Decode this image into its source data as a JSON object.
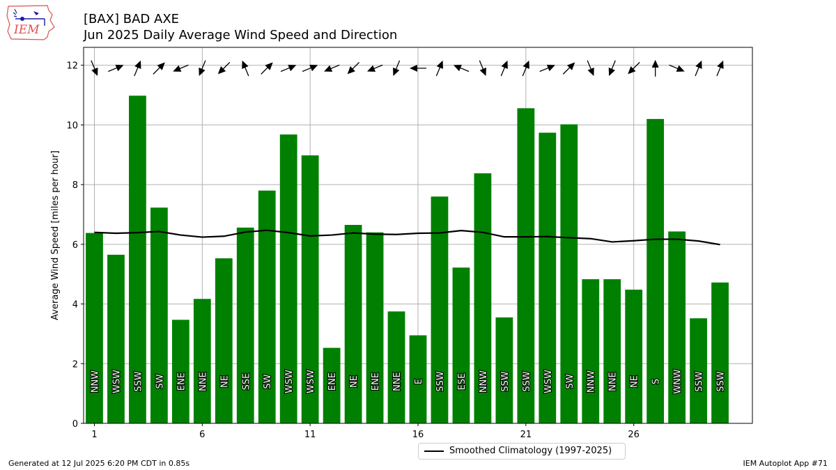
{
  "header": {
    "title_line1": "[BAX] BAD AXE",
    "title_line2": "Jun 2025 Daily Average Wind Speed and Direction"
  },
  "logo": {
    "text": "IEM",
    "icon": "iem-logo-icon"
  },
  "footer": {
    "left": "Generated at 12 Jul 2025 6:20 PM CDT in 0.85s",
    "right": "IEM Autoplot App #71"
  },
  "legend": {
    "label": "Smoothed Climatology (1997-2025)"
  },
  "colors": {
    "bar": "#008000",
    "line": "#000000",
    "grid": "#b0b0b0",
    "arrow": "#000000"
  },
  "chart_data": {
    "type": "bar",
    "title": "[BAX] BAD AXE\nJun 2025 Daily Average Wind Speed and Direction",
    "xlabel": "",
    "ylabel": "Average Wind Speed [miles per hour]",
    "xlim": [
      0.5,
      31.5
    ],
    "ylim": [
      0,
      12.6
    ],
    "xticks": [
      1,
      6,
      11,
      16,
      21,
      26
    ],
    "yticks": [
      0,
      2,
      4,
      6,
      8,
      10,
      12
    ],
    "grid": true,
    "legend_position": "bottom-center",
    "days": [
      1,
      2,
      3,
      4,
      5,
      6,
      7,
      8,
      9,
      10,
      11,
      12,
      13,
      14,
      15,
      16,
      17,
      18,
      19,
      20,
      21,
      22,
      23,
      24,
      25,
      26,
      27,
      28,
      29,
      30
    ],
    "speed": [
      6.38,
      5.65,
      10.98,
      7.23,
      3.47,
      4.17,
      5.53,
      6.56,
      7.8,
      9.68,
      8.98,
      2.53,
      6.65,
      6.4,
      3.75,
      2.95,
      7.6,
      5.22,
      8.38,
      3.55,
      10.56,
      9.74,
      10.02,
      4.83,
      4.83,
      4.48,
      10.2,
      6.43,
      3.52,
      4.72
    ],
    "direction_labels": [
      "NNW",
      "WSW",
      "SSW",
      "SW",
      "ENE",
      "NNE",
      "NE",
      "SSE",
      "SW",
      "WSW",
      "WSW",
      "ENE",
      "NE",
      "ENE",
      "NNE",
      "E",
      "SSW",
      "ESE",
      "NNW",
      "SSW",
      "SSW",
      "WSW",
      "SW",
      "NNW",
      "NNE",
      "NE",
      "S",
      "WNW",
      "SSW",
      "SSW"
    ],
    "direction_degrees": [
      337.5,
      247.5,
      202.5,
      225,
      67.5,
      22.5,
      45,
      157.5,
      225,
      247.5,
      247.5,
      67.5,
      45,
      67.5,
      22.5,
      90,
      202.5,
      112.5,
      337.5,
      202.5,
      202.5,
      247.5,
      225,
      337.5,
      22.5,
      45,
      180,
      292.5,
      202.5,
      202.5
    ],
    "series": [
      {
        "name": "Smoothed Climatology (1997-2025)",
        "type": "line",
        "values": [
          6.4,
          6.37,
          6.39,
          6.43,
          6.31,
          6.24,
          6.27,
          6.41,
          6.47,
          6.39,
          6.28,
          6.31,
          6.38,
          6.34,
          6.33,
          6.37,
          6.38,
          6.46,
          6.4,
          6.25,
          6.25,
          6.26,
          6.22,
          6.19,
          6.08,
          6.12,
          6.17,
          6.17,
          6.11,
          5.99
        ]
      }
    ]
  }
}
